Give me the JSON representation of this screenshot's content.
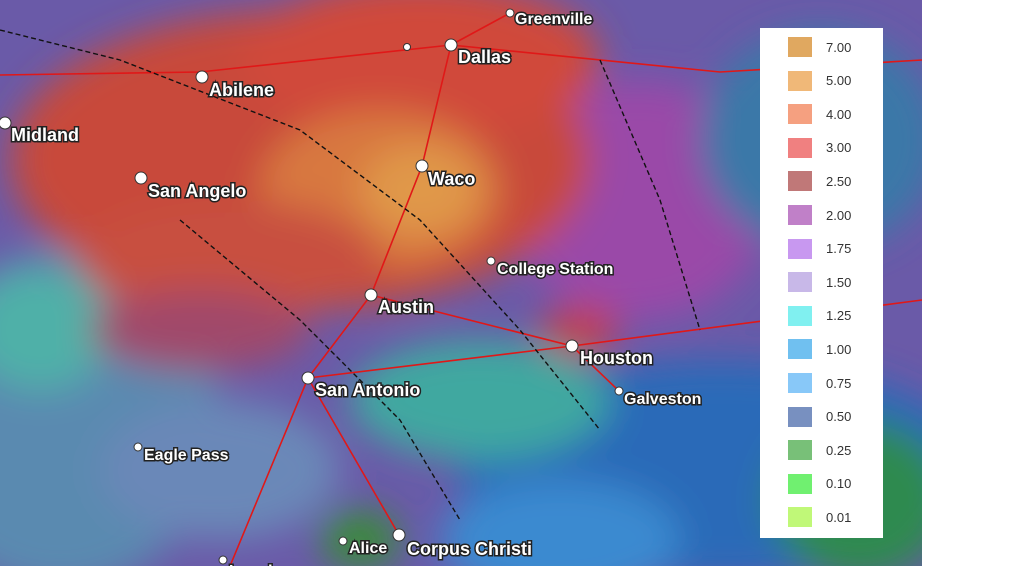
{
  "map": {
    "cities": [
      "Greenville",
      "Dallas",
      "Abilene",
      "Midland",
      "San Angelo",
      "Waco",
      "College Station",
      "Austin",
      "Houston",
      "San Antonio",
      "Galveston",
      "Eagle Pass",
      "Alice",
      "Corpus Christi",
      "Laredo"
    ],
    "legend": [
      {
        "label": "7.00",
        "color": "#e0a860"
      },
      {
        "label": "5.00",
        "color": "#f0b878"
      },
      {
        "label": "4.00",
        "color": "#f5a080"
      },
      {
        "label": "3.00",
        "color": "#f08080"
      },
      {
        "label": "2.50",
        "color": "#c07878"
      },
      {
        "label": "2.00",
        "color": "#c080c8"
      },
      {
        "label": "1.75",
        "color": "#c898f0"
      },
      {
        "label": "1.50",
        "color": "#c8b8e8"
      },
      {
        "label": "1.25",
        "color": "#80f0f0"
      },
      {
        "label": "1.00",
        "color": "#70c0f0"
      },
      {
        "label": "0.75",
        "color": "#88c8f8"
      },
      {
        "label": "0.50",
        "color": "#7890c0"
      },
      {
        "label": "0.25",
        "color": "#78c078"
      },
      {
        "label": "0.10",
        "color": "#70f070"
      },
      {
        "label": "0.01",
        "color": "#c0f878"
      }
    ]
  }
}
